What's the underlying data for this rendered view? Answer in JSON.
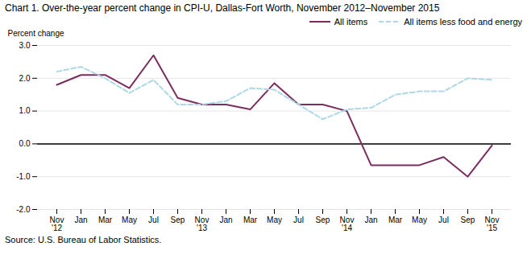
{
  "chart_data": {
    "type": "line",
    "title": "Chart 1. Over-the-year percent change in CPI-U, Dallas-Fort Worth, November 2012–November 2015",
    "ylabel": "Percent change",
    "source": "Source: U.S. Bureau of Labor Statistics.",
    "categories": [
      "Nov\n'12",
      "Jan",
      "Mar",
      "May",
      "Jul",
      "Sep",
      "Nov\n'13",
      "Jan",
      "Mar",
      "May",
      "Jul",
      "Sep",
      "Nov\n'14",
      "Jan",
      "Mar",
      "May",
      "Jul",
      "Sep",
      "Nov\n'15"
    ],
    "series": [
      {
        "name": "All items",
        "color": "#7B2D5E",
        "line_style": "solid",
        "values": [
          1.8,
          2.1,
          2.1,
          1.7,
          2.7,
          1.4,
          1.2,
          1.2,
          1.05,
          1.85,
          1.2,
          1.2,
          1.0,
          -0.65,
          -0.65,
          -0.65,
          -0.4,
          -1.0,
          -0.05
        ]
      },
      {
        "name": "All items less food and energy",
        "color": "#ADD8E6",
        "line_style": "dashed",
        "values": [
          2.2,
          2.35,
          2.0,
          1.55,
          1.95,
          1.2,
          1.2,
          1.3,
          1.7,
          1.65,
          1.2,
          0.75,
          1.05,
          1.1,
          1.5,
          1.6,
          1.6,
          2.0,
          1.95
        ]
      }
    ],
    "ylim": [
      -2.0,
      3.0
    ],
    "yticks": [
      {
        "value": -2.0,
        "label": "-2.0"
      },
      {
        "value": -1.0,
        "label": "-1.0"
      },
      {
        "value": 0.0,
        "label": "0.0"
      },
      {
        "value": 1.0,
        "label": "1.0"
      },
      {
        "value": 2.0,
        "label": "2.0"
      },
      {
        "value": 3.0,
        "label": "3.0"
      }
    ],
    "grid": true,
    "legend": "upper right"
  }
}
